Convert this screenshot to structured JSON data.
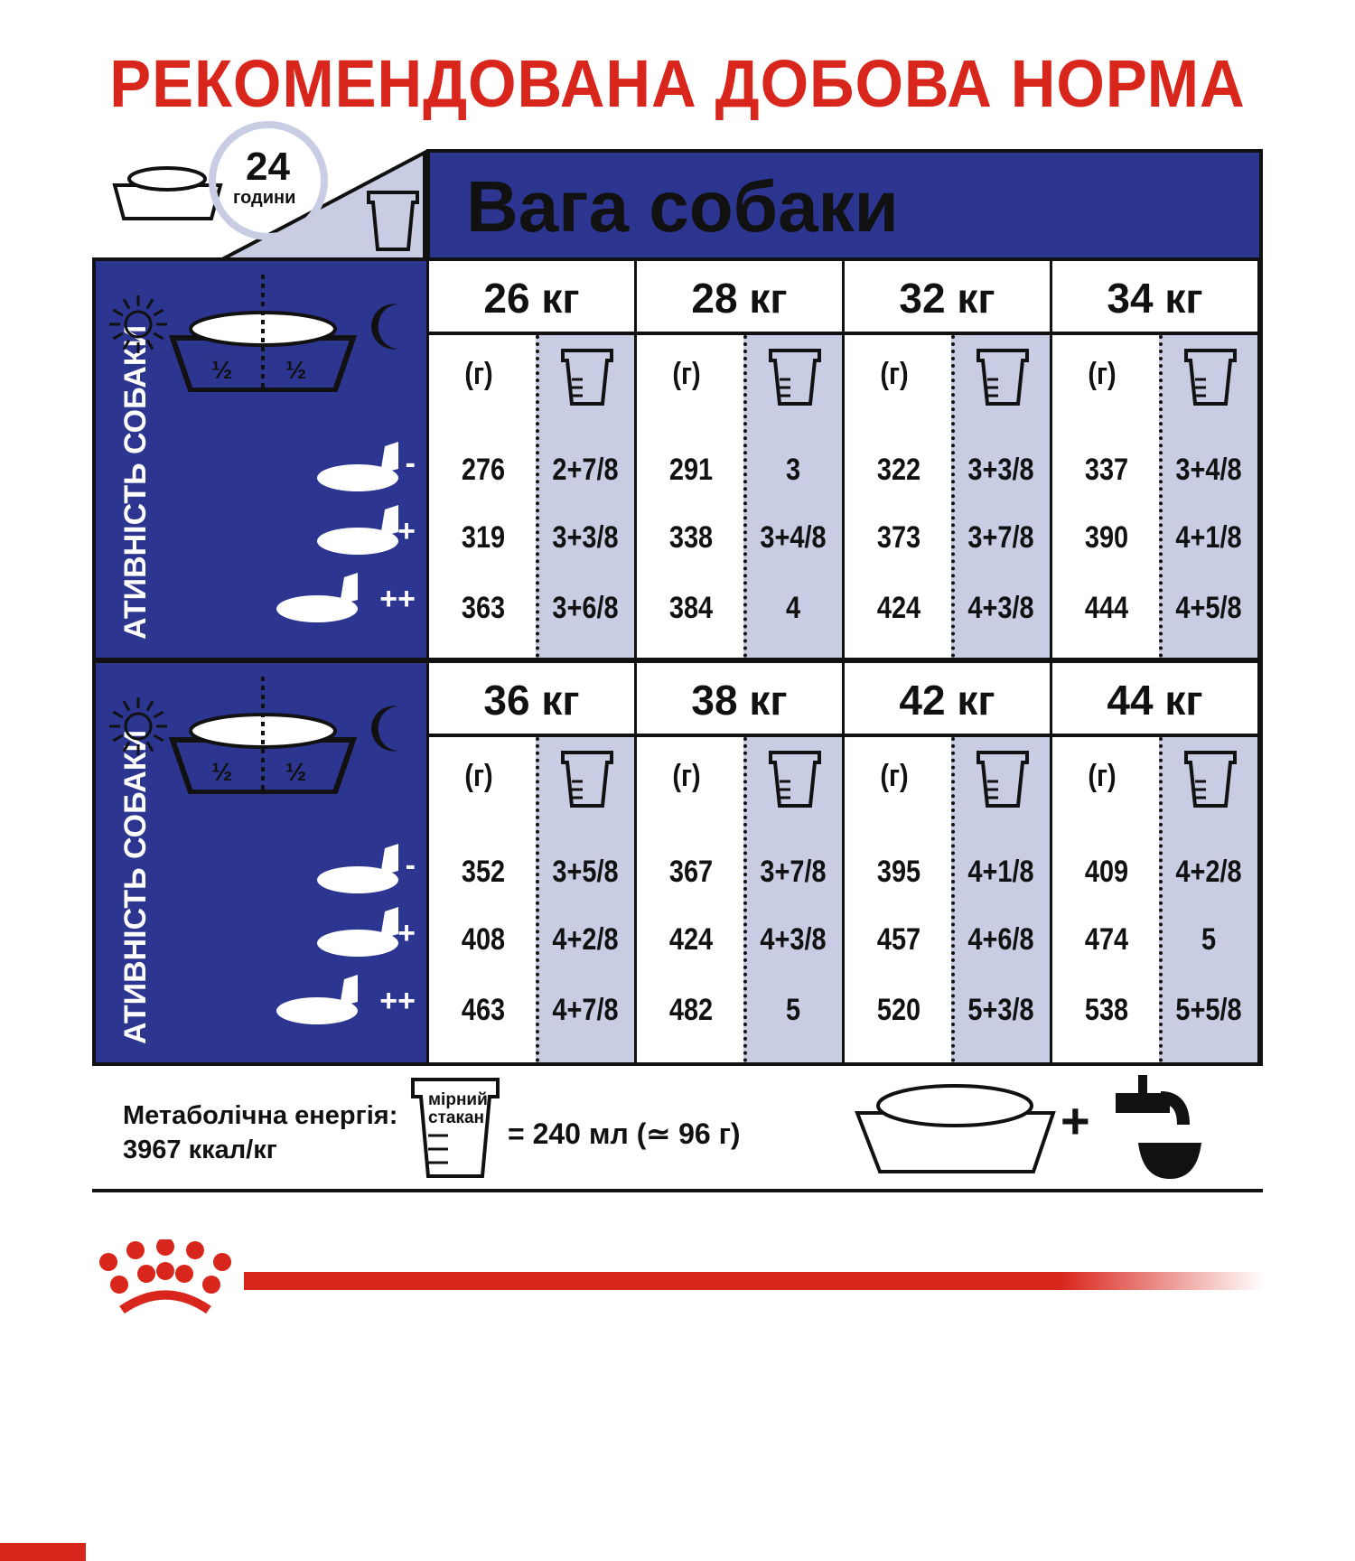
{
  "title": "РЕКОМЕНДОВАНА ДОБОВА НОРМА",
  "clock": {
    "number": "24",
    "unit": "години"
  },
  "cup_label": [
    "мірний",
    "стакан"
  ],
  "header": "Вага собаки",
  "activity_label": "АТИВНІСТЬ СОБАКИ",
  "bowl_split": "½",
  "activity_levels": [
    "-",
    "+",
    "++"
  ],
  "grams_label": "(г)",
  "blocks": [
    {
      "columns": [
        {
          "weight": "26 кг",
          "grams": [
            "276",
            "319",
            "363"
          ],
          "cups": [
            "2+7/8",
            "3+3/8",
            "3+6/8"
          ]
        },
        {
          "weight": "28 кг",
          "grams": [
            "291",
            "338",
            "384"
          ],
          "cups": [
            "3",
            "3+4/8",
            "4"
          ]
        },
        {
          "weight": "32 кг",
          "grams": [
            "322",
            "373",
            "424"
          ],
          "cups": [
            "3+3/8",
            "3+7/8",
            "4+3/8"
          ]
        },
        {
          "weight": "34 кг",
          "grams": [
            "337",
            "390",
            "444"
          ],
          "cups": [
            "3+4/8",
            "4+1/8",
            "4+5/8"
          ]
        }
      ]
    },
    {
      "columns": [
        {
          "weight": "36 кг",
          "grams": [
            "352",
            "408",
            "463"
          ],
          "cups": [
            "3+5/8",
            "4+2/8",
            "4+7/8"
          ]
        },
        {
          "weight": "38 кг",
          "grams": [
            "367",
            "424",
            "482"
          ],
          "cups": [
            "3+7/8",
            "4+3/8",
            "5"
          ]
        },
        {
          "weight": "42 кг",
          "grams": [
            "395",
            "457",
            "520"
          ],
          "cups": [
            "4+1/8",
            "4+6/8",
            "5+3/8"
          ]
        },
        {
          "weight": "44 кг",
          "grams": [
            "409",
            "474",
            "538"
          ],
          "cups": [
            "4+2/8",
            "5",
            "5+5/8"
          ]
        }
      ]
    }
  ],
  "footer": {
    "energy_label": "Метаболічна енергія:",
    "energy_value": "3967 ккал/кг",
    "cup_equals": "= 240 мл (≃ 96 г)",
    "plus": "+"
  },
  "colors": {
    "brand_red": "#d9261c",
    "blue": "#2c3590",
    "light_blue": "#c8cde3"
  }
}
